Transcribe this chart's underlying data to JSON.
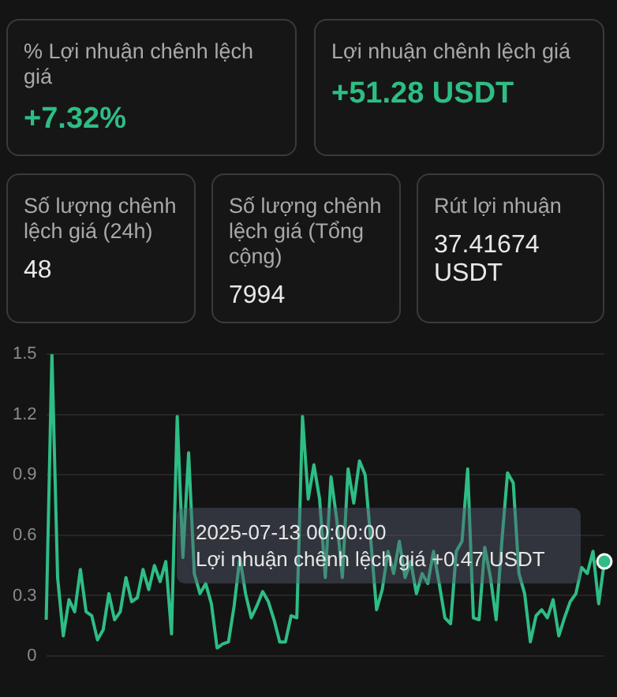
{
  "chart_data": [
    {
      "type": "other",
      "title": "% Lợi nhuận chênh lệch giá",
      "annotations": [
        "+7.32%"
      ]
    },
    {
      "type": "other",
      "title": "Lợi nhuận chênh lệch giá",
      "annotations": [
        "+51.28 USDT"
      ]
    },
    {
      "type": "other",
      "title": "Số lượng chênh lệch giá (24h)",
      "annotations": [
        "48"
      ]
    },
    {
      "type": "other",
      "title": "Số lượng chênh lệch giá (Tổng cộng)",
      "annotations": [
        "7994"
      ]
    },
    {
      "type": "other",
      "title": "Rút lợi nhuận",
      "annotations": [
        "37.41674 USDT"
      ]
    },
    {
      "type": "line",
      "categories": [
        null,
        null,
        null,
        null,
        null,
        null,
        null,
        null,
        null,
        null,
        null,
        null,
        null,
        null,
        null,
        null,
        null,
        null,
        null,
        null,
        null,
        null,
        null,
        null,
        null,
        null,
        null,
        null,
        null,
        null,
        null,
        null,
        null,
        null,
        null,
        null,
        null,
        null,
        null,
        null,
        null,
        null,
        null,
        null,
        null,
        null,
        null,
        null,
        null,
        null,
        null,
        null,
        null,
        null,
        null,
        null,
        null,
        null,
        null,
        null,
        null,
        null,
        null,
        null,
        null,
        null,
        null,
        null,
        null,
        null,
        null,
        null,
        null,
        null,
        null,
        null,
        null,
        null,
        null,
        null,
        null,
        null,
        null,
        null,
        null,
        null,
        null,
        null,
        null,
        null,
        null,
        null,
        null,
        null,
        null,
        null,
        null,
        null,
        null
      ],
      "series": [
        {
          "color": "#2ebd85",
          "values": [
            0.18,
            1.5,
            0.39,
            0.1,
            0.28,
            0.22,
            0.43,
            0.22,
            0.2,
            0.08,
            0.13,
            0.31,
            0.18,
            0.22,
            0.39,
            0.27,
            0.29,
            0.43,
            0.33,
            0.45,
            0.37,
            0.47,
            0.11,
            1.19,
            0.49,
            1.01,
            0.41,
            0.31,
            0.36,
            0.26,
            0.04,
            0.06,
            0.07,
            0.25,
            0.49,
            0.31,
            0.19,
            0.25,
            0.32,
            0.27,
            0.18,
            0.07,
            0.07,
            0.2,
            0.19,
            1.19,
            0.78,
            0.95,
            0.78,
            0.39,
            0.89,
            0.68,
            0.39,
            0.93,
            0.76,
            0.97,
            0.9,
            0.57,
            0.23,
            0.33,
            0.52,
            0.41,
            0.57,
            0.39,
            0.47,
            0.31,
            0.41,
            0.36,
            0.52,
            0.36,
            0.19,
            0.16,
            0.52,
            0.57,
            0.93,
            0.19,
            0.18,
            0.54,
            0.39,
            0.18,
            0.57,
            0.91,
            0.86,
            0.41,
            0.31,
            0.07,
            0.2,
            0.23,
            0.19,
            0.28,
            0.1,
            0.19,
            0.27,
            0.31,
            0.44,
            0.41,
            0.52,
            0.26,
            0.47
          ]
        }
      ],
      "ylim": [
        0,
        1.5
      ],
      "yticks": [
        0,
        0.3,
        0.6,
        0.9,
        1.2,
        1.5
      ],
      "grid": "y",
      "tick_labels": "y",
      "marker": "none",
      "line_style": "solid",
      "annotations": [
        "2025-07-13 00:00:00",
        "Lợi nhuận chênh lệch giá +0.47 USDT"
      ]
    }
  ]
}
